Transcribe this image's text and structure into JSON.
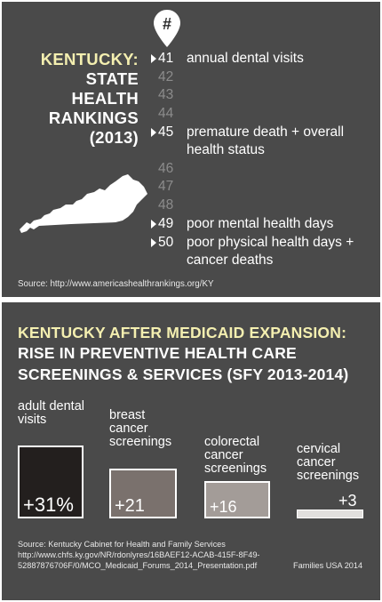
{
  "top": {
    "pin_glyph": "#",
    "title_lines": [
      "KENTUCKY:",
      "STATE",
      "HEALTH",
      "RANKINGS",
      "(2013)"
    ],
    "rankings": [
      {
        "rank": "41",
        "label": "annual dental visits",
        "highlighted": true
      },
      {
        "rank": "42",
        "label": "",
        "highlighted": false
      },
      {
        "rank": "43",
        "label": "",
        "highlighted": false
      },
      {
        "rank": "44",
        "label": "",
        "highlighted": false
      },
      {
        "rank": "45",
        "label": "premature death + overall health status",
        "highlighted": true
      },
      {
        "rank": "46",
        "label": "",
        "highlighted": false
      },
      {
        "rank": "47",
        "label": "",
        "highlighted": false
      },
      {
        "rank": "48",
        "label": "",
        "highlighted": false
      },
      {
        "rank": "49",
        "label": "poor mental health days",
        "highlighted": true
      },
      {
        "rank": "50",
        "label": "poor physical health days + cancer deaths",
        "highlighted": true
      }
    ],
    "source": "Source: http://www.americashealthrankings.org/KY"
  },
  "bottom": {
    "heading_line1": "KENTUCKY AFTER MEDICAID EXPANSION:",
    "heading_line2": "RISE IN PREVENTIVE HEALTH CARE SCREENINGS & SERVICES (SFY 2013-2014)",
    "source": "Source: Kentucky Cabinet for Health and Family Services http://www.chfs.ky.gov/NR/rdonlyres/16BAEF12-ACAB-415F-8F49-52887876706F/0/MCO_Medicaid_Forums_2014_Presentation.pdf",
    "credit": "Families USA 2014"
  },
  "chart_data": {
    "type": "bar",
    "title": "KENTUCKY AFTER MEDICAID EXPANSION: RISE IN PREVENTIVE HEALTH CARE SCREENINGS & SERVICES (SFY 2013-2014)",
    "categories": [
      "adult dental visits",
      "breast cancer screenings",
      "colorectal cancer screenings",
      "cervical cancer screenings"
    ],
    "values": [
      31,
      21,
      16,
      3
    ],
    "value_labels": [
      "+31%",
      "+21",
      "+16",
      "+3"
    ],
    "colors": [
      "#231f1e",
      "#7a716d",
      "#a39c98",
      "#e2e0de"
    ],
    "unit": "%"
  },
  "colors": {
    "background": "#4a4a4a",
    "accent_yellow": "#f4efb0",
    "muted_rank": "#8c8c8c"
  }
}
